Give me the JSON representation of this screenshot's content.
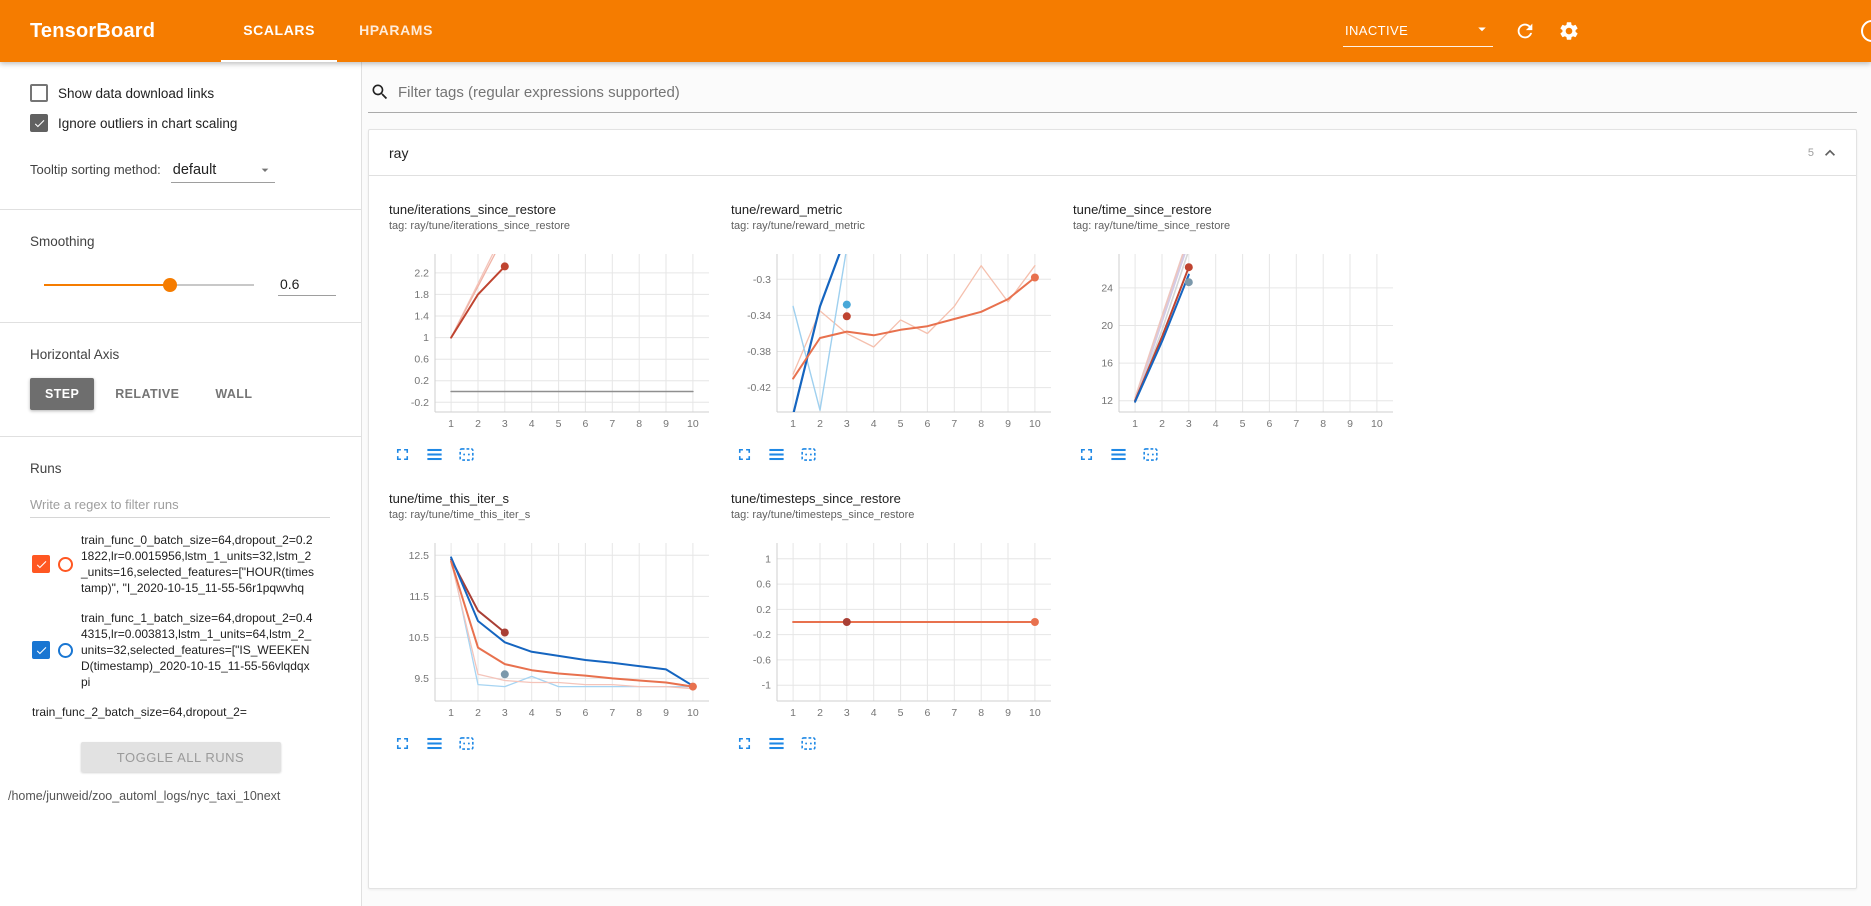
{
  "header": {
    "title": "TensorBoard",
    "tabs": [
      {
        "label": "SCALARS",
        "active": true
      },
      {
        "label": "HPARAMS",
        "active": false
      }
    ],
    "status_dropdown": {
      "value": "INACTIVE"
    },
    "icons": {
      "dropdown": "triangle-down",
      "refresh": "circular-arrow",
      "settings": "gear",
      "help": "question-circle-cut"
    }
  },
  "sidebar": {
    "checkboxes": [
      {
        "label": "Show data download links",
        "checked": false
      },
      {
        "label": "Ignore outliers in chart scaling",
        "checked": true
      }
    ],
    "tooltip_sorting": {
      "label": "Tooltip sorting method:",
      "value": "default"
    },
    "smoothing": {
      "label": "Smoothing",
      "value": "0.6"
    },
    "horizontal_axis": {
      "label": "Horizontal Axis",
      "options": [
        "STEP",
        "RELATIVE",
        "WALL"
      ],
      "selected": "STEP"
    },
    "runs": {
      "label": "Runs",
      "filter_placeholder": "Write a regex to filter runs",
      "items": [
        {
          "name": "train_func_0_batch_size=64,dropout_2=0.21822,lr=0.0015956,lstm_1_units=32,lstm_2_units=16,selected_features=[\"HOUR(timestamp)\", \"I_2020-10-15_11-55-56r1pqwvhq",
          "checked": true,
          "color": "#ff5722"
        },
        {
          "name": "train_func_1_batch_size=64,dropout_2=0.44315,lr=0.003813,lstm_1_units=64,lstm_2_units=32,selected_features=[\"IS_WEEKEND(timestamp)_2020-10-15_11-55-56vlqdqxpi",
          "checked": true,
          "color": "#1976d2"
        },
        {
          "name": "train_func_2_batch_size=64,dropout_2="
        }
      ],
      "toggle_all_label": "TOGGLE ALL RUNS",
      "log_path": "/home/junweid/zoo_automl_logs/nyc_taxi_10next"
    }
  },
  "main": {
    "filter_placeholder": "Filter tags (regular expressions supported)",
    "section": {
      "title": "ray",
      "count": "5",
      "collapsed": false
    }
  },
  "chart_data": [
    {
      "type": "line",
      "title": "tune/iterations_since_restore",
      "tag": "tag: ray/tune/iterations_since_restore",
      "xlim": [
        0.4,
        10.6
      ],
      "ylim": [
        -0.38,
        2.55
      ],
      "xticks": [
        1,
        2,
        3,
        4,
        5,
        6,
        7,
        8,
        9,
        10
      ],
      "yticks": [
        -0.2,
        0.2,
        0.6,
        1,
        1.4,
        1.8,
        2.2
      ],
      "series": [
        {
          "name": "run-raw-a",
          "color": "#f4c4ba",
          "width": 1.3,
          "x": [
            1,
            2,
            3
          ],
          "y": [
            1,
            2,
            3
          ]
        },
        {
          "name": "run-raw-b",
          "color": "#f0b3a6",
          "width": 1.3,
          "x": [
            1,
            2,
            3
          ],
          "y": [
            1,
            1.95,
            2.9
          ]
        },
        {
          "name": "run-smoothed",
          "color": "#bf4430",
          "width": 2,
          "x": [
            1,
            2,
            3
          ],
          "y": [
            1,
            1.8,
            2.32
          ]
        },
        {
          "name": "flat-run",
          "color": "#8f8f8f",
          "width": 1.6,
          "x": [
            1,
            2,
            3,
            4,
            5,
            6,
            7,
            8,
            9,
            10
          ],
          "y": [
            0,
            0,
            0,
            0,
            0,
            0,
            0,
            0,
            0,
            0
          ]
        }
      ],
      "dots": [
        {
          "x": 3,
          "y": 2.32,
          "color": "#bf4430"
        }
      ]
    },
    {
      "type": "line",
      "title": "tune/reward_metric",
      "tag": "tag: ray/tune/reward_metric",
      "xlim": [
        0.4,
        10.6
      ],
      "ylim": [
        -0.447,
        -0.272
      ],
      "xticks": [
        1,
        2,
        3,
        4,
        5,
        6,
        7,
        8,
        9,
        10
      ],
      "yticks": [
        -0.42,
        -0.38,
        -0.34,
        -0.3
      ],
      "series": [
        {
          "name": "orange-raw",
          "color": "#f5c0ae",
          "width": 1.3,
          "x": [
            1,
            2,
            3,
            4,
            5,
            6,
            7,
            8,
            9,
            10
          ],
          "y": [
            -0.405,
            -0.335,
            -0.36,
            -0.375,
            -0.345,
            -0.36,
            -0.33,
            -0.285,
            -0.325,
            -0.285
          ]
        },
        {
          "name": "lightblue-raw",
          "color": "#9fd0ef",
          "width": 1.4,
          "x": [
            1,
            2,
            3
          ],
          "y": [
            -0.33,
            -0.445,
            -0.265
          ]
        },
        {
          "name": "blue-smoothed",
          "color": "#1565c0",
          "width": 2.2,
          "x": [
            1,
            2,
            3
          ],
          "y": [
            -0.45,
            -0.33,
            -0.25
          ]
        },
        {
          "name": "orange-smoothed",
          "color": "#e8714e",
          "width": 2,
          "x": [
            1,
            2,
            3,
            4,
            5,
            6,
            7,
            8,
            9,
            10
          ],
          "y": [
            -0.41,
            -0.365,
            -0.358,
            -0.362,
            -0.356,
            -0.352,
            -0.344,
            -0.336,
            -0.322,
            -0.298
          ]
        }
      ],
      "dots": [
        {
          "x": 3,
          "y": -0.328,
          "color": "#49a8d8"
        },
        {
          "x": 3,
          "y": -0.341,
          "color": "#bf4430"
        },
        {
          "x": 10,
          "y": -0.298,
          "color": "#e8714e"
        }
      ]
    },
    {
      "type": "line",
      "title": "tune/time_since_restore",
      "tag": "tag: ray/tune/time_since_restore",
      "xlim": [
        0.4,
        10.6
      ],
      "ylim": [
        10.8,
        27.6
      ],
      "xticks": [
        1,
        2,
        3,
        4,
        5,
        6,
        7,
        8,
        9,
        10
      ],
      "yticks": [
        12,
        16,
        20,
        24
      ],
      "series": [
        {
          "name": "faint-lavender",
          "color": "#d3cbe5",
          "width": 2.4,
          "x": [
            1,
            2,
            3
          ],
          "y": [
            12,
            20.5,
            29
          ]
        },
        {
          "name": "faint-pink",
          "color": "#eec6be",
          "width": 1.6,
          "x": [
            1,
            2,
            3
          ],
          "y": [
            12.3,
            21,
            29.5
          ]
        },
        {
          "name": "faint-gray",
          "color": "#d6d6d6",
          "width": 1.6,
          "x": [
            1,
            2,
            3
          ],
          "y": [
            11.8,
            19.5,
            28
          ]
        },
        {
          "name": "red-smoothed",
          "color": "#bf4430",
          "width": 2,
          "x": [
            1,
            2,
            3
          ],
          "y": [
            12,
            18.8,
            26.2
          ]
        },
        {
          "name": "blue-smoothed",
          "color": "#1565c0",
          "width": 2,
          "x": [
            1,
            2,
            3
          ],
          "y": [
            11.9,
            18.3,
            25.4
          ]
        }
      ],
      "dots": [
        {
          "x": 3,
          "y": 26.2,
          "color": "#bf4430"
        },
        {
          "x": 3,
          "y": 24.6,
          "color": "#7b98ab"
        }
      ]
    },
    {
      "type": "line",
      "title": "tune/time_this_iter_s",
      "tag": "tag: ray/tune/time_this_iter_s",
      "xlim": [
        0.4,
        10.6
      ],
      "ylim": [
        8.95,
        12.8
      ],
      "xticks": [
        1,
        2,
        3,
        4,
        5,
        6,
        7,
        8,
        9,
        10
      ],
      "yticks": [
        9.5,
        10.5,
        11.5,
        12.5
      ],
      "series": [
        {
          "name": "lightblue-raw",
          "color": "#a6d4f2",
          "width": 1.3,
          "x": [
            1,
            2,
            3,
            4,
            5,
            6,
            7,
            8,
            9,
            10
          ],
          "y": [
            12.45,
            9.35,
            9.3,
            9.55,
            9.3,
            9.3,
            9.3,
            9.3,
            9.3,
            9.3
          ]
        },
        {
          "name": "lightpink-raw",
          "color": "#f4c4ba",
          "width": 1.3,
          "x": [
            1,
            2,
            3,
            4,
            5,
            6,
            7,
            8,
            9,
            10
          ],
          "y": [
            12.35,
            9.6,
            9.45,
            9.4,
            9.4,
            9.35,
            9.35,
            9.3,
            9.3,
            9.25
          ]
        },
        {
          "name": "darkred-smoothed",
          "color": "#a93f35",
          "width": 2,
          "x": [
            1,
            2,
            3
          ],
          "y": [
            12.4,
            11.15,
            10.62
          ]
        },
        {
          "name": "blue-smoothed",
          "color": "#1565c0",
          "width": 2,
          "x": [
            1,
            2,
            3,
            4,
            5,
            6,
            7,
            8,
            9,
            10
          ],
          "y": [
            12.45,
            10.9,
            10.38,
            10.15,
            10.05,
            9.95,
            9.88,
            9.8,
            9.72,
            9.32
          ]
        },
        {
          "name": "orange-smoothed",
          "color": "#e8714e",
          "width": 2,
          "x": [
            1,
            2,
            3,
            4,
            5,
            6,
            7,
            8,
            9,
            10
          ],
          "y": [
            12.35,
            10.25,
            9.85,
            9.7,
            9.62,
            9.57,
            9.5,
            9.45,
            9.4,
            9.3
          ]
        }
      ],
      "dots": [
        {
          "x": 3,
          "y": 10.62,
          "color": "#a93f35"
        },
        {
          "x": 3,
          "y": 9.6,
          "color": "#7b98ab"
        },
        {
          "x": 10,
          "y": 9.3,
          "color": "#e8714e"
        }
      ]
    },
    {
      "type": "line",
      "title": "tune/timesteps_since_restore",
      "tag": "tag: ray/tune/timesteps_since_restore",
      "xlim": [
        0.4,
        10.6
      ],
      "ylim": [
        -1.25,
        1.25
      ],
      "xticks": [
        1,
        2,
        3,
        4,
        5,
        6,
        7,
        8,
        9,
        10
      ],
      "yticks": [
        -1,
        -0.6,
        -0.2,
        0.2,
        0.6,
        1
      ],
      "series": [
        {
          "name": "gray-flat",
          "color": "#8f8f8f",
          "width": 1.5,
          "x": [
            1,
            10
          ],
          "y": [
            0,
            0
          ]
        },
        {
          "name": "orange-flat",
          "color": "#e8714e",
          "width": 2,
          "x": [
            1,
            10
          ],
          "y": [
            0,
            0
          ]
        }
      ],
      "dots": [
        {
          "x": 3,
          "y": 0,
          "color": "#a93f35"
        },
        {
          "x": 10,
          "y": 0,
          "color": "#e8714e"
        }
      ]
    }
  ]
}
